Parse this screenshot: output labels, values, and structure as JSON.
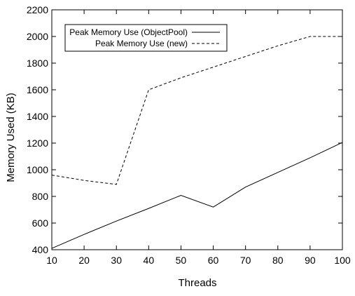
{
  "chart_data": {
    "type": "line",
    "title": "",
    "xlabel": "Threads",
    "ylabel": "Memory Used (KB)",
    "x": [
      10,
      20,
      30,
      40,
      50,
      60,
      70,
      80,
      90,
      100
    ],
    "xlim": [
      10,
      100
    ],
    "ylim": [
      400,
      2200
    ],
    "xticks": [
      10,
      20,
      30,
      40,
      50,
      60,
      70,
      80,
      90,
      100
    ],
    "yticks": [
      400,
      600,
      800,
      1000,
      1200,
      1400,
      1600,
      1800,
      2000,
      2200
    ],
    "grid": false,
    "legend_position": "top-left",
    "series": [
      {
        "name": "Peak Memory Use (ObjectPool)",
        "style": "solid",
        "color": "#000000",
        "values": [
          410,
          515,
          615,
          710,
          808,
          720,
          870,
          980,
          1090,
          1205
        ]
      },
      {
        "name": "Peak Memory Use (new)",
        "style": "dashed",
        "color": "#000000",
        "values": [
          960,
          920,
          890,
          1600,
          1690,
          1770,
          1850,
          1930,
          2000,
          2000
        ]
      }
    ]
  }
}
